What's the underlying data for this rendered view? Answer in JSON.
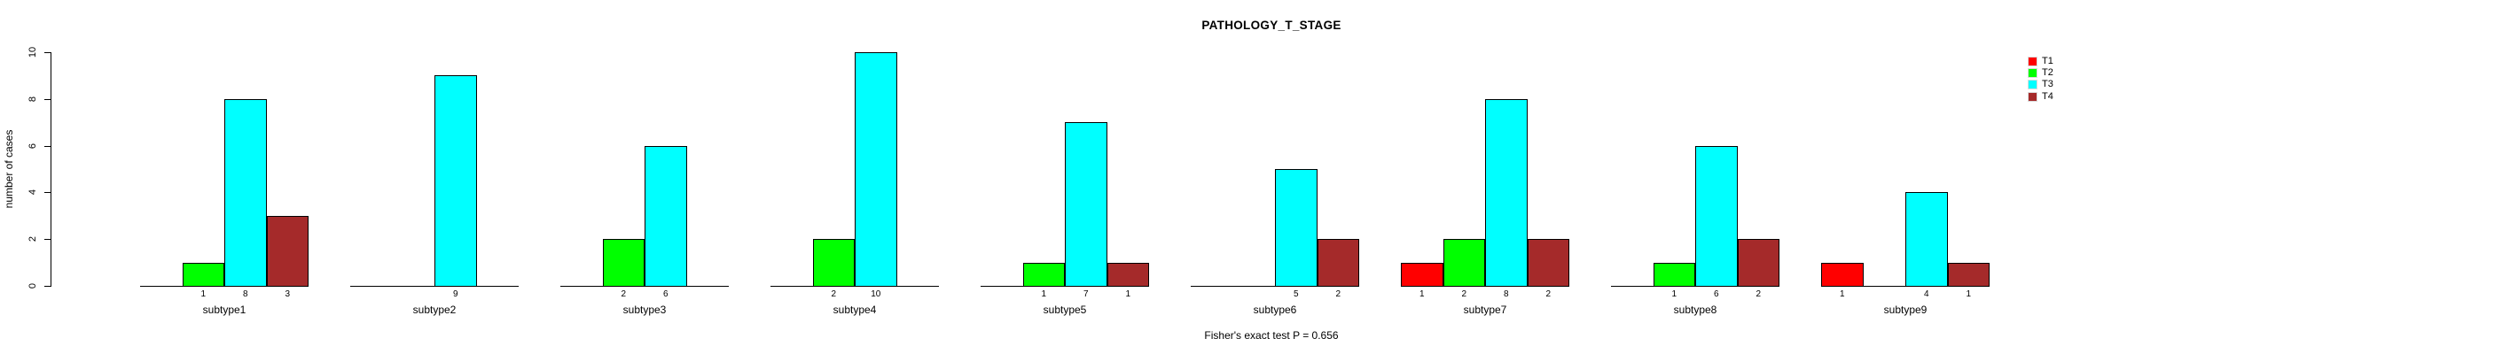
{
  "chart_data": {
    "type": "bar",
    "title": "PATHOLOGY_T_STAGE",
    "ylabel": "number of cases",
    "xlabel": "",
    "ylim": [
      0,
      10
    ],
    "yticks": [
      0,
      2,
      4,
      6,
      8,
      10
    ],
    "grid": false,
    "legend_position": "right",
    "categories": [
      "subtype1",
      "subtype2",
      "subtype3",
      "subtype4",
      "subtype5",
      "subtype6",
      "subtype7",
      "subtype8",
      "subtype9"
    ],
    "series": [
      {
        "name": "T1",
        "color": "#FF0000",
        "values": [
          0,
          0,
          0,
          0,
          0,
          0,
          1,
          0,
          1
        ]
      },
      {
        "name": "T2",
        "color": "#00FF00",
        "values": [
          1,
          0,
          2,
          2,
          1,
          0,
          2,
          1,
          0
        ]
      },
      {
        "name": "T3",
        "color": "#00FFFF",
        "values": [
          8,
          9,
          6,
          10,
          7,
          5,
          8,
          6,
          4
        ]
      },
      {
        "name": "T4",
        "color": "#A52A2A",
        "values": [
          3,
          0,
          0,
          0,
          1,
          2,
          2,
          2,
          1
        ]
      }
    ],
    "bar_value_labels_shown_for_nonzero": true,
    "annotation": "Fisher's exact test P = 0.656"
  }
}
